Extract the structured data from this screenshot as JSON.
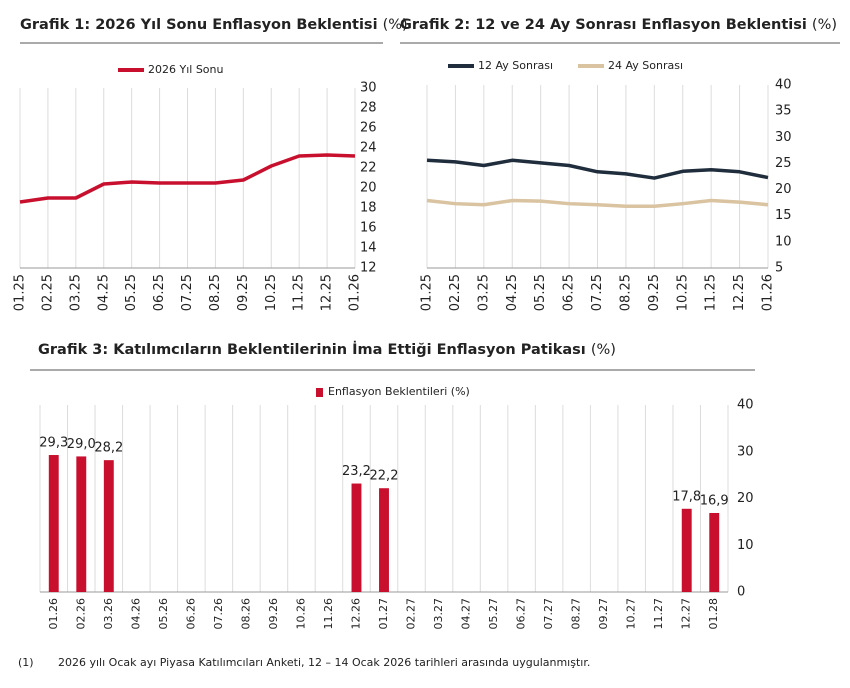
{
  "chart_data": [
    {
      "type": "line",
      "title": "Grafik 1: 2026 Yıl Sonu Enflasyon Beklentisi",
      "unit": "(%)",
      "categories": [
        "01.25",
        "02.25",
        "03.25",
        "04.25",
        "05.25",
        "06.25",
        "07.25",
        "08.25",
        "09.25",
        "10.25",
        "11.25",
        "12.25",
        "01.26"
      ],
      "series": [
        {
          "name": "2026 Yıl Sonu",
          "color": "#c8102e",
          "values": [
            18.6,
            19.0,
            19.0,
            20.4,
            20.6,
            20.5,
            20.5,
            20.5,
            20.8,
            22.2,
            23.2,
            23.3,
            23.2
          ]
        }
      ],
      "ylim": [
        12,
        30
      ],
      "yticks": [
        12,
        14,
        16,
        18,
        20,
        22,
        24,
        26,
        28,
        30
      ],
      "grid": "vertical",
      "y_axis_side": "right"
    },
    {
      "type": "line",
      "title": "Grafik 2: 12 ve 24 Ay Sonrası Enflasyon Beklentisi",
      "unit": "(%)",
      "categories": [
        "01.25",
        "02.25",
        "03.25",
        "04.25",
        "05.25",
        "06.25",
        "07.25",
        "08.25",
        "09.25",
        "10.25",
        "11.25",
        "12.25",
        "01.26"
      ],
      "series": [
        {
          "name": "12 Ay Sonrası",
          "color": "#1f2d3d",
          "values": [
            25.6,
            25.3,
            24.6,
            25.6,
            25.1,
            24.6,
            23.4,
            23.0,
            22.2,
            23.5,
            23.8,
            23.4,
            22.3
          ]
        },
        {
          "name": "24 Ay Sonrası",
          "color": "#d9c3a0",
          "values": [
            17.9,
            17.3,
            17.1,
            17.9,
            17.8,
            17.3,
            17.1,
            16.8,
            16.8,
            17.3,
            17.9,
            17.6,
            17.1
          ]
        }
      ],
      "ylim": [
        5,
        40
      ],
      "yticks": [
        5,
        10,
        15,
        20,
        25,
        30,
        35,
        40
      ],
      "grid": "vertical",
      "y_axis_side": "right"
    },
    {
      "type": "bar",
      "title": "Grafik 3: Katılımcıların Beklentilerinin İma Ettiği Enflasyon Patikası",
      "unit": "(%)",
      "categories": [
        "01.26",
        "02.26",
        "03.26",
        "04.26",
        "05.26",
        "06.26",
        "07.26",
        "08.26",
        "09.26",
        "10.26",
        "11.26",
        "12.26",
        "01.27",
        "02.27",
        "03.27",
        "04.27",
        "05.27",
        "06.27",
        "07.27",
        "08.27",
        "09.27",
        "10.27",
        "11.27",
        "12.27",
        "01.28"
      ],
      "series": [
        {
          "name": "Enflasyon Beklentileri (%)",
          "color": "#c8102e",
          "values": [
            29.3,
            29.0,
            28.2,
            null,
            null,
            null,
            null,
            null,
            null,
            null,
            null,
            23.2,
            22.2,
            null,
            null,
            null,
            null,
            null,
            null,
            null,
            null,
            null,
            null,
            17.8,
            16.9
          ],
          "value_labels": [
            "29,3",
            "29,0",
            "28,2",
            null,
            null,
            null,
            null,
            null,
            null,
            null,
            null,
            "23,2",
            "22,2",
            null,
            null,
            null,
            null,
            null,
            null,
            null,
            null,
            null,
            null,
            "17,8",
            "16,9"
          ]
        }
      ],
      "ylim": [
        0,
        40
      ],
      "yticks": [
        0,
        10,
        20,
        30,
        40
      ],
      "grid": "vertical",
      "y_axis_side": "right"
    }
  ],
  "footnote": {
    "marker": "(1)",
    "text": "2026 yılı Ocak ayı Piyasa Katılımcıları Anketi, 12 – 14 Ocak 2026 tarihleri arasında uygulanmıştır."
  }
}
